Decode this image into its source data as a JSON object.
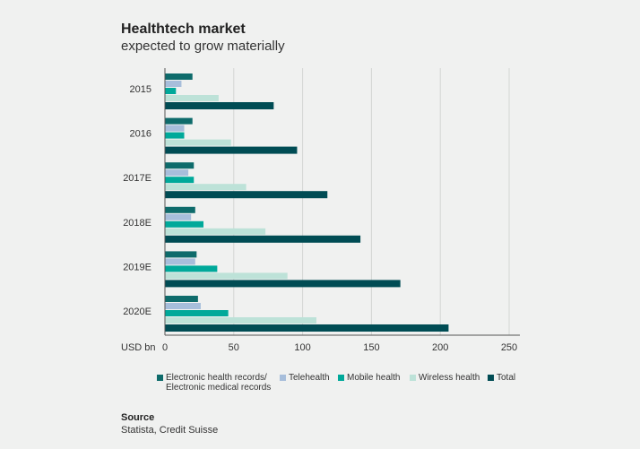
{
  "header": {
    "title": "Healthtech market",
    "subtitle": "expected to grow materially"
  },
  "chart_data": {
    "type": "bar",
    "orientation": "horizontal",
    "categories": [
      "2015",
      "2016",
      "2017E",
      "2018E",
      "2019E",
      "2020E"
    ],
    "series": [
      {
        "name": "Electronic health records/ Electronic medical records",
        "line1": "Electronic health records/",
        "line2": "Electronic medical records",
        "color": "#0e6b6b",
        "values": [
          20,
          20,
          21,
          22,
          23,
          24
        ]
      },
      {
        "name": "Telehealth",
        "color": "#a7bedb",
        "values": [
          12,
          14,
          17,
          19,
          22,
          26
        ]
      },
      {
        "name": "Mobile health",
        "color": "#00a99a",
        "values": [
          8,
          14,
          21,
          28,
          38,
          46
        ]
      },
      {
        "name": "Wireless health",
        "color": "#bde2d8",
        "values": [
          39,
          48,
          59,
          73,
          89,
          110
        ]
      },
      {
        "name": "Total",
        "color": "#004c54",
        "values": [
          79,
          96,
          118,
          142,
          171,
          206
        ]
      }
    ],
    "xlabel": "USD bn",
    "xlim": [
      0,
      250
    ],
    "xticks": [
      "0",
      "50",
      "100",
      "150",
      "200",
      "250"
    ],
    "grid": true,
    "legend": "bottom"
  },
  "source": {
    "label": "Source",
    "text": "Statista, Credit Suisse"
  }
}
